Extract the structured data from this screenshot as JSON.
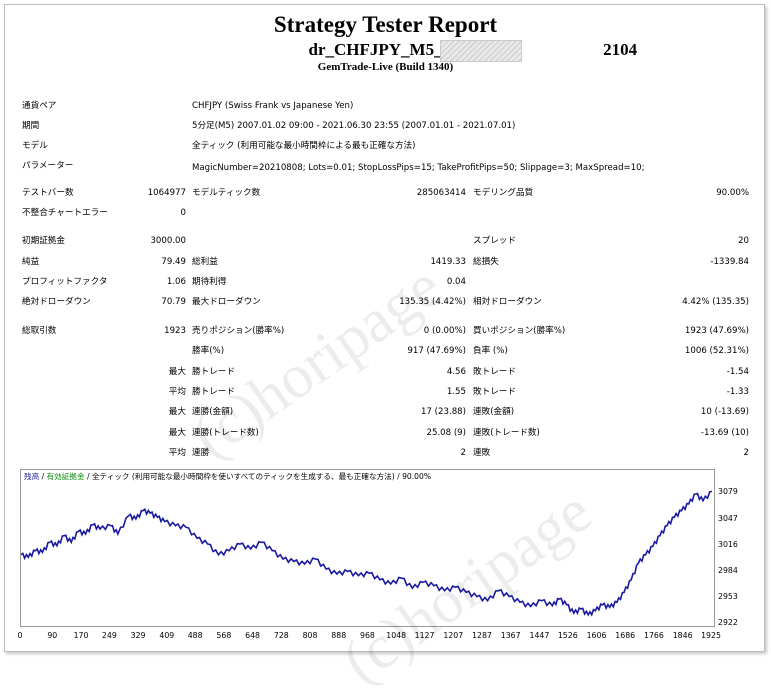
{
  "report": {
    "title": "Strategy Tester Report",
    "name_prefix": "dr_CHFJPY_M5_BUY_ver_",
    "name_suffix": "2104",
    "server": "GemTrade-Live (Build 1340)"
  },
  "info": [
    {
      "label": "通貨ペア",
      "value": "CHFJPY (Swiss Frank vs Japanese Yen)"
    },
    {
      "label": "期間",
      "value": "5分足(M5) 2007.01.02 09:00 - 2021.06.30 23:55 (2007.01.01 - 2021.07.01)"
    },
    {
      "label": "モデル",
      "value": "全ティック (利用可能な最小時間枠による最も正確な方法)"
    },
    {
      "label": "パラメーター",
      "value": "MagicNumber=20210808; Lots=0.01; StopLossPips=15; TakeProfitPips=50; Slippage=3; MaxSpread=10;"
    }
  ],
  "stats": {
    "bars_label": "テストバー数",
    "bars_value": "1064977",
    "ticks_label": "モデルティック数",
    "ticks_value": "285063414",
    "quality_label": "モデリング品質",
    "quality_value": "90.00%",
    "mismatch_label": "不整合チャートエラー",
    "mismatch_value": "0",
    "deposit_label": "初期証拠金",
    "deposit_value": "3000.00",
    "spread_label": "スプレッド",
    "spread_value": "20",
    "netprofit_label": "純益",
    "netprofit_value": "79.49",
    "grossprofit_label": "総利益",
    "grossprofit_value": "1419.33",
    "grossloss_label": "総損失",
    "grossloss_value": "-1339.84",
    "pf_label": "プロフィットファクタ",
    "pf_value": "1.06",
    "expected_label": "期待利得",
    "expected_value": "0.04",
    "absdd_label": "絶対ドローダウン",
    "absdd_value": "70.79",
    "maxdd_label": "最大ドローダウン",
    "maxdd_value": "135.35 (4.42%)",
    "reldd_label": "相対ドローダウン",
    "reldd_value": "4.42% (135.35)",
    "trades_label": "総取引数",
    "trades_value": "1923",
    "short_label": "売りポジション(勝率%)",
    "short_value": "0 (0.00%)",
    "long_label": "買いポジション(勝率%)",
    "long_value": "1923 (47.69%)",
    "winrate_label": "勝率(%)",
    "winrate_value": "917 (47.69%)",
    "lossrate_label": "負率 (%)",
    "lossrate_value": "1006 (52.31%)",
    "max_label": "最大",
    "avg_label": "平均",
    "win_trade_label": "勝トレード",
    "loss_trade_label": "敗トレード",
    "max_win_value": "4.56",
    "max_loss_value": "-1.54",
    "avg_win_value": "1.55",
    "avg_loss_value": "-1.33",
    "consec_win_amt_label": "連勝(金額)",
    "consec_win_amt_value": "17 (23.88)",
    "consec_loss_amt_label": "連敗(金額)",
    "consec_loss_amt_value": "10 (-13.69)",
    "consec_win_cnt_label": "連勝(トレード数)",
    "consec_win_cnt_value": "25.08 (9)",
    "consec_loss_cnt_label": "連敗(トレード数)",
    "consec_loss_cnt_value": "-13.69 (10)",
    "avg_win_streak_label": "連勝",
    "avg_win_streak_value": "2",
    "avg_loss_streak_label": "連敗",
    "avg_loss_streak_value": "2"
  },
  "chart_legend": {
    "balance": "残高",
    "equity": "有効証拠金",
    "rest": "全ティック (利用可能な最小時間枠を使いすべてのティックを生成する、最も正確な方法) / 90.00%"
  },
  "watermark": "(c)horipage",
  "colors": {
    "line": "#1a1aa0",
    "balance_legend": "#1a1aa0",
    "equity_legend": "#0a8a0a"
  },
  "chart_data": {
    "type": "line",
    "xlabel": "",
    "ylabel": "",
    "x_ticks": [
      "0",
      "90",
      "170",
      "249",
      "329",
      "409",
      "488",
      "568",
      "648",
      "728",
      "808",
      "888",
      "968",
      "1048",
      "1127",
      "1207",
      "1287",
      "1367",
      "1447",
      "1526",
      "1606",
      "1686",
      "1766",
      "1846",
      "1925"
    ],
    "y_ticks": [
      "3079",
      "3047",
      "3016",
      "2984",
      "2953",
      "2922"
    ],
    "xlim": [
      0,
      1925
    ],
    "ylim": [
      2922,
      3090
    ],
    "series": [
      {
        "x": [
          0,
          20,
          40,
          60,
          80,
          100,
          120,
          140,
          160,
          180,
          200,
          220,
          250,
          270,
          300,
          320,
          340,
          360,
          380,
          400,
          430,
          460,
          490,
          520,
          550,
          580,
          610,
          640,
          670,
          700,
          730,
          760,
          790,
          820,
          850,
          880,
          910,
          940,
          970,
          1000,
          1030,
          1060,
          1090,
          1120,
          1150,
          1180,
          1210,
          1240,
          1270,
          1300,
          1330,
          1360,
          1390,
          1420,
          1450,
          1480,
          1500,
          1520,
          1540,
          1560,
          1580,
          1600,
          1620,
          1640,
          1660,
          1680,
          1700,
          1720,
          1740,
          1760,
          1780,
          1800,
          1820,
          1840,
          1860,
          1880,
          1900,
          1925
        ],
        "values": [
          3005,
          3002,
          3010,
          3008,
          3020,
          3016,
          3028,
          3020,
          3033,
          3030,
          3041,
          3036,
          3040,
          3030,
          3052,
          3048,
          3058,
          3055,
          3050,
          3045,
          3040,
          3038,
          3025,
          3018,
          3005,
          3010,
          3018,
          3012,
          3020,
          3010,
          3000,
          2997,
          2994,
          3000,
          2988,
          2982,
          2985,
          2980,
          2983,
          2975,
          2970,
          2977,
          2965,
          2972,
          2968,
          2962,
          2966,
          2960,
          2955,
          2950,
          2962,
          2955,
          2948,
          2943,
          2950,
          2944,
          2952,
          2945,
          2935,
          2940,
          2933,
          2938,
          2945,
          2942,
          2948,
          2960,
          2975,
          2995,
          3005,
          3015,
          3028,
          3040,
          3050,
          3058,
          3066,
          3078,
          3070,
          3081
        ]
      }
    ]
  }
}
